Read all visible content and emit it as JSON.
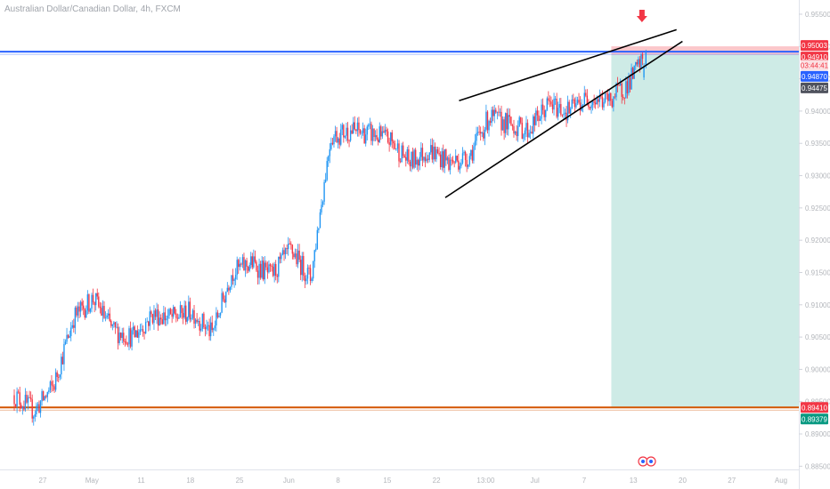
{
  "chart_data": {
    "type": "candlestick",
    "title": "Australian Dollar/Canadian Dollar, 4h, FXCM",
    "ylim": [
      0.8845,
      0.9572
    ],
    "yticks": [
      "0.95500",
      "0.95000",
      "0.94500",
      "0.94000",
      "0.93500",
      "0.93000",
      "0.92500",
      "0.92000",
      "0.91500",
      "0.91000",
      "0.90500",
      "0.90000",
      "0.89500",
      "0.89000",
      "0.88500"
    ],
    "xticks": [
      "27",
      "May",
      "11",
      "18",
      "25",
      "Jun",
      "8",
      "15",
      "22",
      "13:00",
      "Jul",
      "7",
      "13",
      "20",
      "27",
      "Aug"
    ],
    "price_path": [
      [
        0,
        0.896
      ],
      [
        1,
        0.8935
      ],
      [
        2,
        0.8975
      ],
      [
        3,
        0.908
      ],
      [
        4,
        0.911
      ],
      [
        5,
        0.906
      ],
      [
        6,
        0.905
      ],
      [
        7,
        0.9085
      ],
      [
        8,
        0.908
      ],
      [
        9,
        0.909
      ],
      [
        10,
        0.9055
      ],
      [
        11,
        0.915
      ],
      [
        12,
        0.9165
      ],
      [
        13,
        0.9145
      ],
      [
        14,
        0.9185
      ],
      [
        15,
        0.914
      ],
      [
        16,
        0.936
      ],
      [
        17,
        0.937
      ],
      [
        18,
        0.9365
      ],
      [
        19,
        0.9355
      ],
      [
        20,
        0.932
      ],
      [
        21,
        0.934
      ],
      [
        22,
        0.932
      ],
      [
        23,
        0.933
      ],
      [
        24,
        0.939
      ],
      [
        25,
        0.938
      ],
      [
        26,
        0.937
      ],
      [
        27,
        0.941
      ],
      [
        28,
        0.94
      ],
      [
        29,
        0.942
      ],
      [
        30,
        0.9415
      ],
      [
        31,
        0.944
      ],
      [
        32,
        0.949
      ]
    ],
    "wedge": {
      "upper": [
        [
          22.5,
          0.9416
        ],
        [
          33.5,
          0.9526
        ]
      ],
      "lower": [
        [
          21.8,
          0.9266
        ],
        [
          33.8,
          0.9508
        ]
      ]
    },
    "levels": [
      {
        "name": "resistance",
        "value": 0.9492,
        "color": "#2962ff"
      },
      {
        "name": "support",
        "value": 0.8941,
        "color": "#d35400"
      }
    ],
    "position": {
      "type": "short",
      "entry": 0.9487,
      "stop": 0.95003,
      "target": 0.8941,
      "start_x": 30.2
    },
    "price_labels": [
      {
        "text": "0.95003",
        "value": 0.95003,
        "bg": "#f23645",
        "fg": "#ffffff"
      },
      {
        "text": "0.94910",
        "value": 0.9491,
        "bg": "#f23645",
        "fg": "#ffffff"
      },
      {
        "text": "03:44:41",
        "value": 0.948,
        "bg": "#fbe0e2",
        "fg": "#f23645"
      },
      {
        "text": "0.94870",
        "value": 0.9487,
        "bg": "#2962ff",
        "fg": "#ffffff"
      },
      {
        "text": "0.94475",
        "value": 0.94475,
        "bg": "#50535e",
        "fg": "#ffffff"
      },
      {
        "text": "0.89410",
        "value": 0.8941,
        "bg": "#f23645",
        "fg": "#ffffff"
      },
      {
        "text": "0.89379",
        "value": 0.89379,
        "bg": "#089981",
        "fg": "#ffffff"
      }
    ],
    "colors": {
      "up": "#2196f3",
      "down": "#f23645",
      "arrow": "#f23645"
    }
  }
}
